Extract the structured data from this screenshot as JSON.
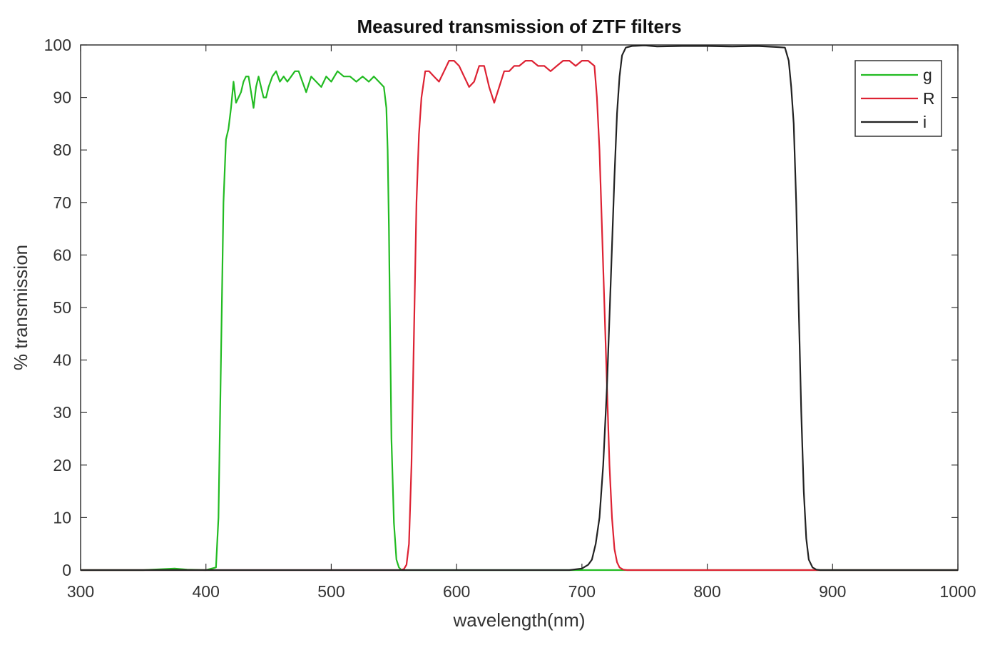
{
  "chart_data": {
    "type": "line",
    "title": "Measured transmission of ZTF filters",
    "xlabel": "wavelength(nm)",
    "ylabel": "% transmission",
    "xlim": [
      300,
      1000
    ],
    "ylim": [
      0,
      100
    ],
    "xticks": [
      300,
      400,
      500,
      600,
      700,
      800,
      900,
      1000
    ],
    "yticks": [
      0,
      10,
      20,
      30,
      40,
      50,
      60,
      70,
      80,
      90,
      100
    ],
    "grid": false,
    "legend_position": "top-right",
    "series": [
      {
        "name": "g",
        "color": "#22bb22",
        "x": [
          300,
          350,
          375,
          385,
          400,
          408,
          410,
          412,
          414,
          416,
          418,
          420,
          422,
          424,
          426,
          428,
          430,
          432,
          434,
          436,
          438,
          440,
          442,
          444,
          446,
          448,
          450,
          453,
          456,
          459,
          462,
          465,
          468,
          471,
          474,
          477,
          480,
          484,
          488,
          492,
          496,
          500,
          505,
          510,
          515,
          520,
          525,
          530,
          534,
          538,
          542,
          544,
          545,
          546,
          547,
          548,
          550,
          552,
          554,
          556,
          560,
          600,
          700,
          800,
          900,
          1000
        ],
        "y": [
          0,
          0,
          0.3,
          0.1,
          0,
          0.5,
          10,
          40,
          70,
          82,
          84,
          88,
          93,
          89,
          90,
          91,
          93,
          94,
          94,
          91,
          88,
          92,
          94,
          92,
          90,
          90,
          92,
          94,
          95,
          93,
          94,
          93,
          94,
          95,
          95,
          93,
          91,
          94,
          93,
          92,
          94,
          93,
          95,
          94,
          94,
          93,
          94,
          93,
          94,
          93,
          92,
          88,
          80,
          65,
          45,
          25,
          9,
          2,
          0.5,
          0,
          0,
          0,
          0,
          0,
          0,
          0
        ]
      },
      {
        "name": "R",
        "color": "#dd2233",
        "x": [
          300,
          500,
          555,
          558,
          560,
          562,
          564,
          566,
          568,
          570,
          572,
          575,
          578,
          582,
          586,
          590,
          594,
          598,
          602,
          606,
          610,
          614,
          618,
          622,
          626,
          630,
          634,
          638,
          642,
          646,
          650,
          655,
          660,
          665,
          670,
          675,
          680,
          685,
          690,
          695,
          700,
          705,
          710,
          712,
          714,
          716,
          718,
          720,
          722,
          724,
          726,
          728,
          730,
          733,
          736,
          740,
          800,
          1000
        ],
        "y": [
          0,
          0,
          0,
          0.2,
          1,
          5,
          20,
          45,
          70,
          83,
          90,
          95,
          95,
          94,
          93,
          95,
          97,
          97,
          96,
          94,
          92,
          93,
          96,
          96,
          92,
          89,
          92,
          95,
          95,
          96,
          96,
          97,
          97,
          96,
          96,
          95,
          96,
          97,
          97,
          96,
          97,
          97,
          96,
          90,
          80,
          65,
          50,
          35,
          20,
          10,
          4,
          1.5,
          0.5,
          0.1,
          0,
          0,
          0,
          0
        ]
      },
      {
        "name": "i",
        "color": "#222222",
        "x": [
          300,
          690,
          700,
          705,
          708,
          711,
          714,
          717,
          720,
          723,
          726,
          728,
          730,
          732,
          735,
          740,
          750,
          760,
          780,
          800,
          820,
          840,
          855,
          862,
          865,
          867,
          869,
          871,
          873,
          875,
          877,
          879,
          881,
          884,
          887,
          890,
          895,
          900,
          1000
        ],
        "y": [
          0,
          0,
          0.3,
          1,
          2,
          5,
          10,
          20,
          35,
          55,
          75,
          87,
          94,
          98,
          99.5,
          99.8,
          99.9,
          99.7,
          99.8,
          99.8,
          99.7,
          99.8,
          99.6,
          99.5,
          97,
          92,
          85,
          70,
          50,
          30,
          15,
          6,
          2,
          0.5,
          0.1,
          0,
          0,
          0,
          0
        ]
      }
    ]
  }
}
